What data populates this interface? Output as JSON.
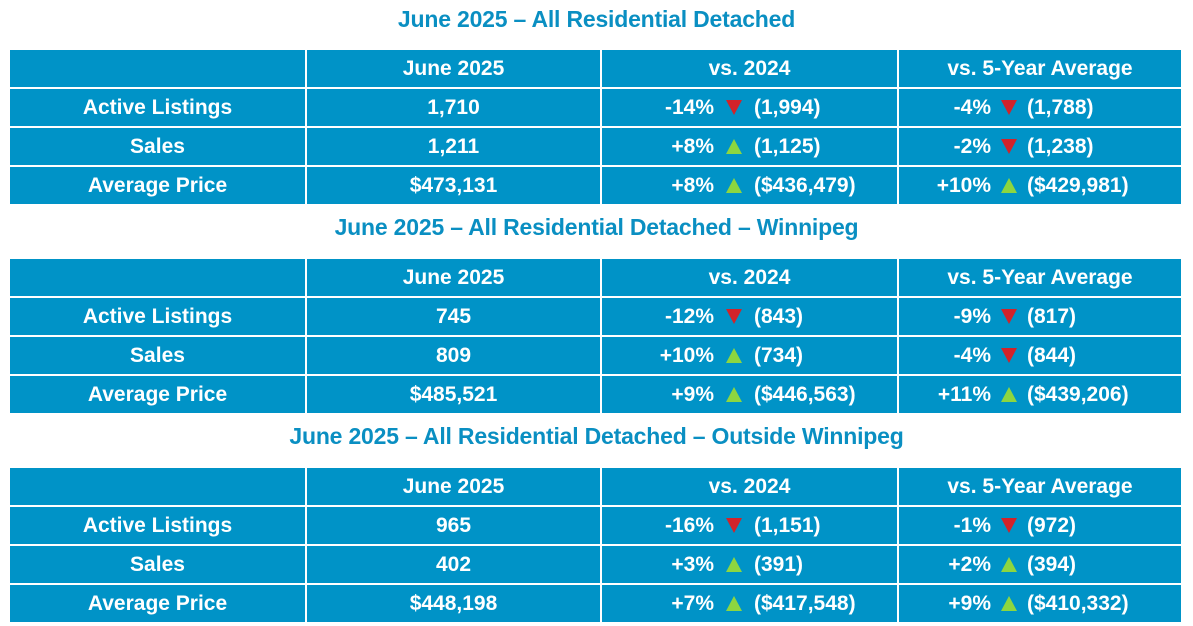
{
  "colors": {
    "title": "#0a8fc2",
    "table_bg": "#0093c7",
    "down": "#d2232a",
    "up": "#8dd640"
  },
  "header": {
    "col1": "",
    "col2": "June 2025",
    "col3": "vs. 2024",
    "col4": "vs. 5-Year Average"
  },
  "tables": [
    {
      "title": "June 2025 – All Residential Detached",
      "rows": [
        {
          "label": "Active Listings",
          "value": "1,710",
          "vs2024": {
            "pct": "-14%",
            "dir": "down",
            "prev": "(1,994)"
          },
          "vs5yr": {
            "pct": "-4%",
            "dir": "down",
            "prev": "(1,788)"
          }
        },
        {
          "label": "Sales",
          "value": "1,211",
          "vs2024": {
            "pct": "+8%",
            "dir": "up",
            "prev": "(1,125)"
          },
          "vs5yr": {
            "pct": "-2%",
            "dir": "down",
            "prev": "(1,238)"
          }
        },
        {
          "label": "Average Price",
          "value": "$473,131",
          "vs2024": {
            "pct": "+8%",
            "dir": "up",
            "prev": "($436,479)"
          },
          "vs5yr": {
            "pct": "+10%",
            "dir": "up",
            "prev": "($429,981)"
          }
        }
      ]
    },
    {
      "title": "June 2025 – All Residential Detached – Winnipeg",
      "rows": [
        {
          "label": "Active Listings",
          "value": "745",
          "vs2024": {
            "pct": "-12%",
            "dir": "down",
            "prev": "(843)"
          },
          "vs5yr": {
            "pct": "-9%",
            "dir": "down",
            "prev": "(817)"
          }
        },
        {
          "label": "Sales",
          "value": "809",
          "vs2024": {
            "pct": "+10%",
            "dir": "up",
            "prev": "(734)"
          },
          "vs5yr": {
            "pct": "-4%",
            "dir": "down",
            "prev": "(844)"
          }
        },
        {
          "label": "Average Price",
          "value": "$485,521",
          "vs2024": {
            "pct": "+9%",
            "dir": "up",
            "prev": "($446,563)"
          },
          "vs5yr": {
            "pct": "+11%",
            "dir": "up",
            "prev": "($439,206)"
          }
        }
      ]
    },
    {
      "title": "June 2025 – All Residential Detached – Outside Winnipeg",
      "rows": [
        {
          "label": "Active Listings",
          "value": "965",
          "vs2024": {
            "pct": "-16%",
            "dir": "down",
            "prev": "(1,151)"
          },
          "vs5yr": {
            "pct": "-1%",
            "dir": "down",
            "prev": "(972)"
          }
        },
        {
          "label": "Sales",
          "value": "402",
          "vs2024": {
            "pct": "+3%",
            "dir": "up",
            "prev": "(391)"
          },
          "vs5yr": {
            "pct": "+2%",
            "dir": "up",
            "prev": "(394)"
          }
        },
        {
          "label": "Average Price",
          "value": "$448,198",
          "vs2024": {
            "pct": "+7%",
            "dir": "up",
            "prev": "($417,548)"
          },
          "vs5yr": {
            "pct": "+9%",
            "dir": "up",
            "prev": "($410,332)"
          }
        }
      ]
    }
  ]
}
